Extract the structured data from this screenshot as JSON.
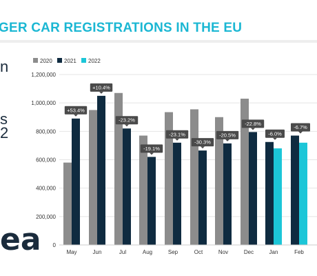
{
  "header": {
    "title": "GER CAR REGISTRATIONS IN THE EU"
  },
  "left_fragments": [
    "n",
    "s",
    "2",
    "ea"
  ],
  "colors": {
    "y2020": "#8c8c8c",
    "y2021": "#0f2b40",
    "y2022": "#1cc6d8",
    "title": "#1bb7d3",
    "label_box": "#4a4a4a"
  },
  "chart_data": {
    "type": "bar",
    "categories": [
      "May",
      "Jun",
      "Jul",
      "Aug",
      "Sep",
      "Oct",
      "Nov",
      "Dec",
      "Jan",
      "Feb"
    ],
    "series": [
      {
        "name": "2020",
        "values": [
          580000,
          950000,
          1070000,
          770000,
          935000,
          955000,
          900000,
          1030000,
          null,
          null
        ]
      },
      {
        "name": "2021",
        "values": [
          890000,
          1050000,
          820000,
          620000,
          720000,
          665000,
          715000,
          795000,
          725000,
          770000
        ]
      },
      {
        "name": "2022",
        "values": [
          null,
          null,
          null,
          null,
          null,
          null,
          null,
          null,
          680000,
          720000
        ]
      }
    ],
    "data_labels": [
      "+53.4%",
      "+10.4%",
      "-23.2%",
      "-19.1%",
      "-23.1%",
      "-30.3%",
      "-20.5%",
      "-22.8%",
      "-6.0%",
      "-6.7%"
    ],
    "ylim": [
      0,
      1200000
    ],
    "yticks": [
      0,
      200000,
      400000,
      600000,
      800000,
      1000000,
      1200000
    ],
    "ytick_labels": [
      "0",
      "200,000",
      "400,000",
      "600,000",
      "800,000",
      "1,000,000",
      "1,200,000"
    ],
    "legend_position": "top-left",
    "grid": true
  }
}
